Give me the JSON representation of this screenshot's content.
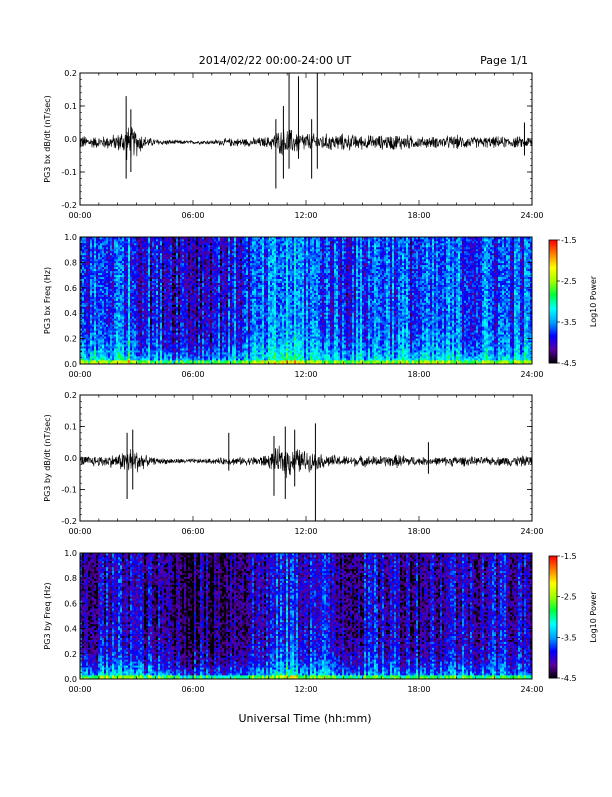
{
  "header": {
    "title": "2014/02/22  00:00-24:00 UT",
    "page_label": "Page 1/1"
  },
  "xaxis": {
    "title": "Universal Time (hh:mm)",
    "ticks": [
      "00:00",
      "06:00",
      "12:00",
      "18:00",
      "24:00"
    ],
    "range_hours": [
      0,
      24
    ]
  },
  "colorbar": {
    "label": "Log10 Power",
    "tick_labels": [
      "-1.5",
      "-2.5",
      "-3.5",
      "-4.5"
    ],
    "tick_values": [
      -1.5,
      -2.5,
      -3.5,
      -4.5
    ],
    "range": [
      -4.5,
      -1.5
    ],
    "colormap": [
      "#000000",
      "#5a00a0",
      "#0000ff",
      "#00a0ff",
      "#00ffff",
      "#00ff40",
      "#a0ff00",
      "#ffff00",
      "#ff8000",
      "#ff0000"
    ]
  },
  "chart_data": [
    {
      "type": "line",
      "ylabel": "PG3 bx dB/dt (nT/sec)",
      "ylim": [
        -0.2,
        0.2
      ],
      "yticks": [
        0.2,
        0.1,
        0.0,
        -0.1,
        -0.2
      ],
      "ytick_labels": [
        "0.2",
        "0.1",
        "0.0",
        "-0.1",
        "-0.2"
      ],
      "color": "#000000",
      "baseline": -0.01,
      "noise_envelope": {
        "hours": [
          0,
          1,
          2,
          2.5,
          3,
          3.5,
          4,
          5,
          6,
          7,
          8,
          9,
          10,
          10.5,
          11,
          11.5,
          12,
          12.5,
          13,
          14,
          15,
          16,
          17,
          18,
          19,
          20,
          21,
          22,
          23,
          24
        ],
        "amplitude": [
          0.025,
          0.02,
          0.03,
          0.06,
          0.05,
          0.02,
          0.012,
          0.008,
          0.006,
          0.008,
          0.015,
          0.015,
          0.02,
          0.04,
          0.05,
          0.04,
          0.035,
          0.03,
          0.03,
          0.03,
          0.025,
          0.025,
          0.03,
          0.02,
          0.02,
          0.025,
          0.02,
          0.02,
          0.02,
          0.02
        ]
      },
      "spikes": [
        {
          "hour": 2.45,
          "min": -0.12,
          "max": 0.13
        },
        {
          "hour": 2.7,
          "min": -0.1,
          "max": 0.09
        },
        {
          "hour": 10.4,
          "min": -0.15,
          "max": 0.06
        },
        {
          "hour": 10.8,
          "min": -0.12,
          "max": 0.1
        },
        {
          "hour": 11.1,
          "min": -0.09,
          "max": 0.2
        },
        {
          "hour": 11.6,
          "min": -0.06,
          "max": 0.19
        },
        {
          "hour": 12.3,
          "min": -0.12,
          "max": 0.06
        },
        {
          "hour": 12.6,
          "min": -0.09,
          "max": 0.2
        },
        {
          "hour": 23.6,
          "min": -0.05,
          "max": 0.05
        }
      ]
    },
    {
      "type": "heatmap",
      "ylabel": "PG3 bx Freq (Hz)",
      "ylim": [
        0.0,
        1.0
      ],
      "yticks": [
        1.0,
        0.8,
        0.6,
        0.4,
        0.2,
        0.0
      ],
      "ytick_labels": [
        "1.0",
        "0.8",
        "0.6",
        "0.4",
        "0.2",
        "0.0"
      ],
      "value_range": [
        -4.5,
        -1.5
      ],
      "profile": {
        "hours": [
          0,
          2,
          2.5,
          3,
          4,
          6,
          8,
          10,
          11,
          12,
          13,
          14,
          16,
          18,
          20,
          22,
          24
        ],
        "mean_power_low_freq": [
          -3.0,
          -2.9,
          -2.7,
          -3.0,
          -3.2,
          -3.3,
          -3.2,
          -3.0,
          -2.6,
          -2.9,
          -3.0,
          -3.1,
          -3.1,
          -3.0,
          -3.1,
          -3.1,
          -3.1
        ],
        "mean_power_high_freq": [
          -3.8,
          -3.7,
          -3.6,
          -3.8,
          -3.9,
          -4.0,
          -3.9,
          -3.7,
          -3.5,
          -3.6,
          -3.7,
          -3.8,
          -3.6,
          -3.8,
          -3.7,
          -3.7,
          -3.7
        ]
      }
    },
    {
      "type": "line",
      "ylabel": "PG3 by dB/dt (nT/sec)",
      "ylim": [
        -0.2,
        0.2
      ],
      "yticks": [
        0.2,
        0.1,
        0.0,
        -0.1,
        -0.2
      ],
      "ytick_labels": [
        "0.2",
        "0.1",
        "0.0",
        "-0.1",
        "-0.2"
      ],
      "color": "#000000",
      "baseline": -0.01,
      "noise_envelope": {
        "hours": [
          0,
          1,
          2,
          2.5,
          3,
          3.5,
          4,
          5,
          6,
          7,
          8,
          9,
          10,
          10.5,
          11,
          11.5,
          12,
          12.5,
          13,
          14,
          15,
          16,
          17,
          18,
          19,
          20,
          21,
          22,
          23,
          24
        ],
        "amplitude": [
          0.02,
          0.02,
          0.025,
          0.05,
          0.05,
          0.02,
          0.012,
          0.01,
          0.008,
          0.01,
          0.015,
          0.015,
          0.025,
          0.05,
          0.06,
          0.05,
          0.04,
          0.03,
          0.025,
          0.02,
          0.02,
          0.02,
          0.025,
          0.015,
          0.015,
          0.02,
          0.015,
          0.015,
          0.02,
          0.02
        ]
      },
      "spikes": [
        {
          "hour": 2.5,
          "min": -0.13,
          "max": 0.08
        },
        {
          "hour": 2.8,
          "min": -0.1,
          "max": 0.09
        },
        {
          "hour": 7.9,
          "min": -0.04,
          "max": 0.08
        },
        {
          "hour": 10.3,
          "min": -0.12,
          "max": 0.07
        },
        {
          "hour": 10.9,
          "min": -0.13,
          "max": 0.1
        },
        {
          "hour": 11.4,
          "min": -0.09,
          "max": 0.09
        },
        {
          "hour": 12.5,
          "min": -0.2,
          "max": 0.11
        },
        {
          "hour": 18.5,
          "min": -0.05,
          "max": 0.05
        }
      ]
    },
    {
      "type": "heatmap",
      "ylabel": "PG3 by Freq (Hz)",
      "ylim": [
        0.0,
        1.0
      ],
      "yticks": [
        1.0,
        0.8,
        0.6,
        0.4,
        0.2,
        0.0
      ],
      "ytick_labels": [
        "1.0",
        "0.8",
        "0.6",
        "0.4",
        "0.2",
        "0.0"
      ],
      "value_range": [
        -4.5,
        -1.5
      ],
      "profile": {
        "hours": [
          0,
          2,
          2.5,
          3,
          4,
          6,
          8,
          10,
          11,
          12,
          13,
          14,
          16,
          18,
          20,
          22,
          24
        ],
        "mean_power_low_freq": [
          -3.2,
          -3.0,
          -2.8,
          -3.1,
          -3.3,
          -3.5,
          -3.4,
          -3.2,
          -2.7,
          -3.0,
          -3.2,
          -3.3,
          -3.3,
          -3.2,
          -3.3,
          -3.3,
          -3.3
        ],
        "mean_power_high_freq": [
          -4.2,
          -4.0,
          -3.9,
          -4.1,
          -4.2,
          -4.3,
          -4.2,
          -4.0,
          -3.8,
          -3.9,
          -4.0,
          -4.1,
          -4.0,
          -4.1,
          -4.0,
          -4.0,
          -4.0
        ]
      }
    }
  ]
}
